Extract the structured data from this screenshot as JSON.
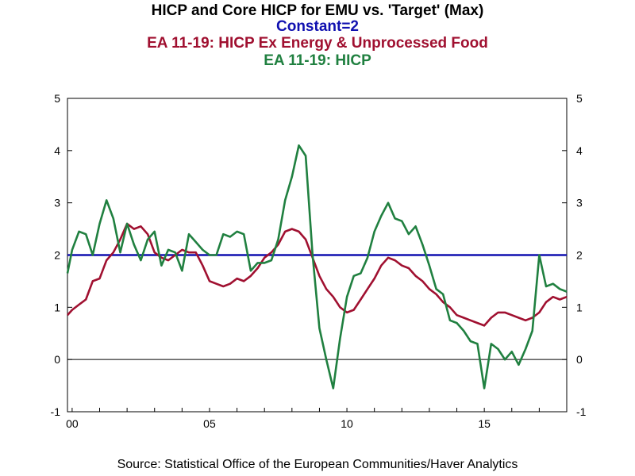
{
  "chart_data": {
    "type": "line",
    "title": "HICP and Core HICP for EMU vs. 'Target' (Max)",
    "ylim": [
      -1,
      5
    ],
    "xlim": [
      1999.83,
      2018.0
    ],
    "yticks": [
      -1,
      0,
      1,
      2,
      3,
      4,
      5
    ],
    "xtick_labels": [
      {
        "label": "00",
        "year": 2000
      },
      {
        "label": "05",
        "year": 2005
      },
      {
        "label": "10",
        "year": 2010
      },
      {
        "label": "15",
        "year": 2015
      }
    ],
    "grid": false,
    "zero_line": true,
    "series": [
      {
        "name": "Constant=2",
        "color": "#1010b0",
        "x": [
          1999.83,
          2018.0
        ],
        "y": [
          2,
          2
        ]
      },
      {
        "name": "EA 11-19: HICP Ex Energy & Unprocessed Food",
        "color": "#a01030",
        "x": [
          1999.83,
          2000.0,
          2000.25,
          2000.5,
          2000.75,
          2001.0,
          2001.25,
          2001.5,
          2001.75,
          2002.0,
          2002.25,
          2002.5,
          2002.75,
          2003.0,
          2003.25,
          2003.5,
          2003.75,
          2004.0,
          2004.25,
          2004.5,
          2004.75,
          2005.0,
          2005.25,
          2005.5,
          2005.75,
          2006.0,
          2006.25,
          2006.5,
          2006.75,
          2007.0,
          2007.25,
          2007.5,
          2007.75,
          2008.0,
          2008.25,
          2008.5,
          2008.75,
          2009.0,
          2009.25,
          2009.5,
          2009.75,
          2010.0,
          2010.25,
          2010.5,
          2010.75,
          2011.0,
          2011.25,
          2011.5,
          2011.75,
          2012.0,
          2012.25,
          2012.5,
          2012.75,
          2013.0,
          2013.25,
          2013.5,
          2013.75,
          2014.0,
          2014.25,
          2014.5,
          2014.75,
          2015.0,
          2015.25,
          2015.5,
          2015.75,
          2016.0,
          2016.25,
          2016.5,
          2016.75,
          2017.0,
          2017.25,
          2017.5,
          2017.75,
          2018.0
        ],
        "y": [
          0.85,
          0.95,
          1.05,
          1.15,
          1.5,
          1.55,
          1.9,
          2.05,
          2.3,
          2.6,
          2.5,
          2.55,
          2.4,
          2.05,
          1.95,
          1.9,
          2.0,
          2.1,
          2.05,
          2.05,
          1.8,
          1.5,
          1.45,
          1.4,
          1.45,
          1.55,
          1.5,
          1.6,
          1.75,
          1.95,
          2.05,
          2.2,
          2.45,
          2.5,
          2.45,
          2.3,
          1.95,
          1.6,
          1.35,
          1.2,
          1.0,
          0.9,
          0.95,
          1.15,
          1.35,
          1.55,
          1.8,
          1.95,
          1.9,
          1.8,
          1.75,
          1.6,
          1.5,
          1.35,
          1.25,
          1.1,
          1.0,
          0.85,
          0.8,
          0.75,
          0.7,
          0.65,
          0.8,
          0.9,
          0.9,
          0.85,
          0.8,
          0.75,
          0.8,
          0.9,
          1.1,
          1.2,
          1.15,
          1.2
        ]
      },
      {
        "name": "EA 11-19: HICP",
        "color": "#208040",
        "x": [
          1999.83,
          2000.0,
          2000.25,
          2000.5,
          2000.75,
          2001.0,
          2001.25,
          2001.5,
          2001.75,
          2002.0,
          2002.25,
          2002.5,
          2002.75,
          2003.0,
          2003.25,
          2003.5,
          2003.75,
          2004.0,
          2004.25,
          2004.5,
          2004.75,
          2005.0,
          2005.25,
          2005.5,
          2005.75,
          2006.0,
          2006.25,
          2006.5,
          2006.75,
          2007.0,
          2007.25,
          2007.5,
          2007.75,
          2008.0,
          2008.25,
          2008.5,
          2008.75,
          2009.0,
          2009.25,
          2009.5,
          2009.75,
          2010.0,
          2010.25,
          2010.5,
          2010.75,
          2011.0,
          2011.25,
          2011.5,
          2011.75,
          2012.0,
          2012.25,
          2012.5,
          2012.75,
          2013.0,
          2013.25,
          2013.5,
          2013.75,
          2014.0,
          2014.25,
          2014.5,
          2014.75,
          2015.0,
          2015.25,
          2015.5,
          2015.75,
          2016.0,
          2016.25,
          2016.5,
          2016.75,
          2017.0,
          2017.25,
          2017.5,
          2017.75,
          2018.0
        ],
        "y": [
          1.65,
          2.1,
          2.45,
          2.4,
          2.0,
          2.6,
          3.05,
          2.7,
          2.05,
          2.6,
          2.2,
          1.9,
          2.3,
          2.45,
          1.8,
          2.1,
          2.05,
          1.7,
          2.4,
          2.25,
          2.1,
          2.0,
          2.0,
          2.4,
          2.35,
          2.45,
          2.4,
          1.7,
          1.85,
          1.85,
          1.9,
          2.3,
          3.05,
          3.5,
          4.1,
          3.9,
          2.0,
          0.6,
          0.0,
          -0.55,
          0.4,
          1.2,
          1.6,
          1.65,
          1.95,
          2.45,
          2.75,
          3.0,
          2.7,
          2.65,
          2.4,
          2.55,
          2.2,
          1.8,
          1.35,
          1.25,
          0.75,
          0.7,
          0.55,
          0.35,
          0.3,
          -0.55,
          0.3,
          0.2,
          0.0,
          0.15,
          -0.1,
          0.2,
          0.55,
          2.0,
          1.4,
          1.45,
          1.35,
          1.3
        ]
      }
    ]
  },
  "titles": {
    "main": "HICP and Core HICP for EMU vs. 'Target' (Max)",
    "constant": "Constant=2",
    "core": "EA 11-19: HICP Ex Energy & Unprocessed Food",
    "hicp": "EA 11-19: HICP"
  },
  "source": "Source:  Statistical Office of the European Communities/Haver Analytics"
}
